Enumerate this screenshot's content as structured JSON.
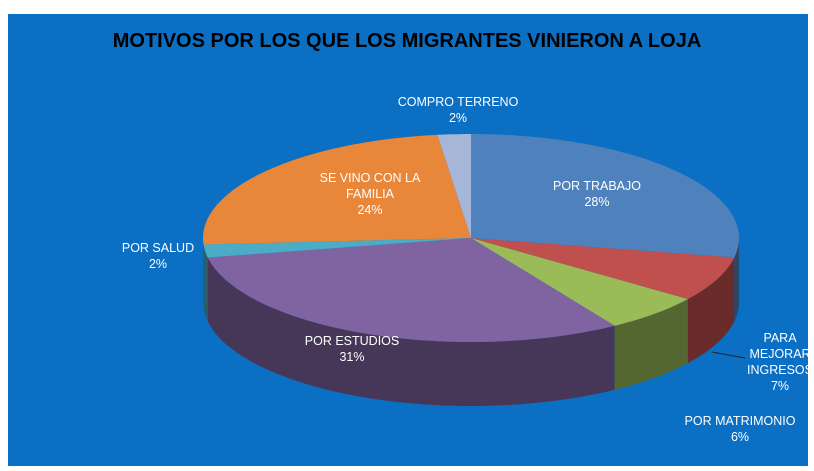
{
  "chart_data": {
    "type": "pie3d",
    "title": "MOTIVOS POR LOS QUE LOS MIGRANTES VINIERON A LOJA",
    "categories": [
      "POR TRABAJO",
      "PARA MEJORAR INGRESOS",
      "POR MATRIMONIO",
      "POR ESTUDIOS",
      "POR SALUD",
      "SE VINO CON LA FAMILIA",
      "COMPRO TERRENO"
    ],
    "values": [
      28,
      7,
      6,
      31,
      2,
      24,
      2
    ],
    "value_labels": [
      "28%",
      "7%",
      "6%",
      "31%",
      "2%",
      "24%",
      "2%"
    ],
    "colors": [
      "#4f81bd",
      "#c0504d",
      "#9bbb59",
      "#8064a2",
      "#4bacc6",
      "#e8863a",
      "#a6b6d9"
    ]
  }
}
